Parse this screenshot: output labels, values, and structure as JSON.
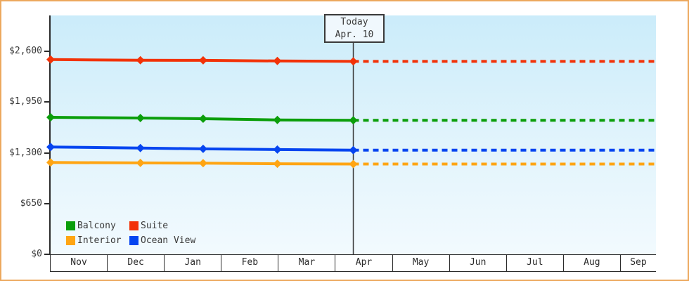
{
  "chart_data": {
    "type": "line",
    "description": "Cruise cabin price history with dotted flat projection after today",
    "x_axis": {
      "tick_labels": [
        "Nov",
        "Dec",
        "Jan",
        "Feb",
        "Mar",
        "Apr",
        "May",
        "Jun",
        "Jul",
        "Aug",
        "Sep"
      ],
      "span_months": 10.52,
      "grid": "month cells drawn as bordered table row"
    },
    "y_axis": {
      "ticks": [
        {
          "value": 2600,
          "label": "$2,600"
        },
        {
          "value": 1950,
          "label": "$1,950"
        },
        {
          "value": 1300,
          "label": "$1,300"
        },
        {
          "value": 650,
          "label": "$650"
        },
        {
          "value": 0,
          "label": "$0"
        }
      ],
      "range": [
        0,
        3060
      ]
    },
    "today": {
      "title": "Today",
      "date": "Apr. 10",
      "month_position": 5.26
    },
    "projection_style": "dotted",
    "series": [
      {
        "id": "balcony",
        "name": "Balcony",
        "color": "#0b9e0b",
        "points_month": [
          0,
          1.56,
          2.65,
          3.94,
          5.26
        ],
        "values": [
          1754,
          1745,
          1736,
          1721,
          1716
        ],
        "projected_value": 1716
      },
      {
        "id": "suite",
        "name": "Suite",
        "color": "#f23208",
        "points_month": [
          0,
          1.56,
          2.65,
          3.94,
          5.26
        ],
        "values": [
          2494,
          2486,
          2484,
          2476,
          2470
        ],
        "projected_value": 2470
      },
      {
        "id": "interior",
        "name": "Interior",
        "color": "#ffa513",
        "points_month": [
          0,
          1.56,
          2.65,
          3.94,
          5.26
        ],
        "values": [
          1176,
          1170,
          1168,
          1160,
          1156
        ],
        "projected_value": 1156
      },
      {
        "id": "ocean-view",
        "name": "Ocean View",
        "color": "#0645f0",
        "points_month": [
          0,
          1.56,
          2.65,
          3.94,
          5.26
        ],
        "values": [
          1374,
          1361,
          1350,
          1341,
          1334
        ],
        "projected_value": 1334
      }
    ],
    "legend_position": "bottom-left inside plot",
    "colors": {
      "frame_border": "#eca85e",
      "plot_top": "#cbecfa",
      "plot_bottom": "#f2fafe",
      "axis": "#2b2b2b",
      "today_line": "#3a3a3a"
    }
  }
}
